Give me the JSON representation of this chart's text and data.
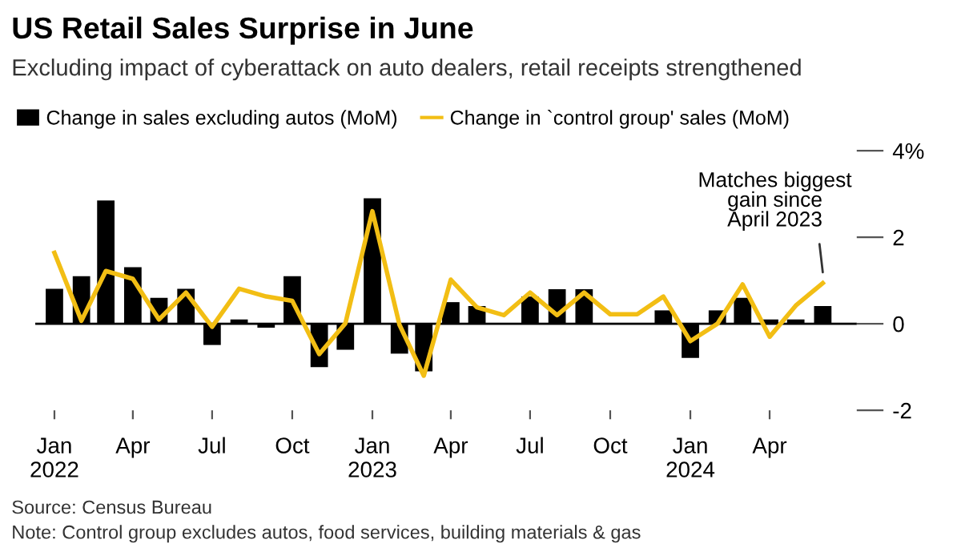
{
  "chart_data": {
    "type": "bar",
    "title": "US Retail Sales Surprise in June",
    "subtitle": "Excluding impact of cyberattack on auto dealers, retail receipts strengthened",
    "x": [
      "2022-01",
      "2022-02",
      "2022-03",
      "2022-04",
      "2022-05",
      "2022-06",
      "2022-07",
      "2022-08",
      "2022-09",
      "2022-10",
      "2022-11",
      "2022-12",
      "2023-01",
      "2023-02",
      "2023-03",
      "2023-04",
      "2023-05",
      "2023-06",
      "2023-07",
      "2023-08",
      "2023-09",
      "2023-10",
      "2023-11",
      "2023-12",
      "2024-01",
      "2024-02",
      "2024-03",
      "2024-04",
      "2024-05",
      "2024-06"
    ],
    "series": [
      {
        "name": "Change in sales excluding autos (MoM)",
        "color": "#000000",
        "values": [
          0.81,
          1.1,
          2.85,
          1.31,
          0.6,
          0.81,
          -0.49,
          0.1,
          -0.09,
          1.1,
          -1.0,
          -0.6,
          2.9,
          -0.69,
          -1.1,
          0.5,
          0.41,
          0,
          0.63,
          0.8,
          0.8,
          0,
          0,
          0.31,
          -0.79,
          0.31,
          0.6,
          0.1,
          0.1,
          0.41
        ]
      },
      {
        "name": "Change in `control group' sales (MoM)",
        "type": "line",
        "color": "#f2be14",
        "values": [
          1.64,
          0.07,
          1.22,
          1.04,
          0.1,
          0.72,
          -0.07,
          0.81,
          0.63,
          0.53,
          -0.7,
          0.01,
          2.6,
          -0.02,
          -1.2,
          1.02,
          0.38,
          0.2,
          0.72,
          0.2,
          0.72,
          0.22,
          0.22,
          0.63,
          -0.4,
          0,
          0.91,
          -0.3,
          0.42,
          0.94
        ]
      }
    ],
    "xlim": [
      "2021-12-10",
      "2024-07-10"
    ],
    "xticks": [
      {
        "value": "2022-01",
        "label": "Jan\n2022"
      },
      {
        "value": "2022-04",
        "label": "Apr"
      },
      {
        "value": "2022-07",
        "label": "Jul"
      },
      {
        "value": "2022-10",
        "label": "Oct"
      },
      {
        "value": "2023-01",
        "label": "Jan\n2023"
      },
      {
        "value": "2023-04",
        "label": "Apr"
      },
      {
        "value": "2023-07",
        "label": "Jul"
      },
      {
        "value": "2023-10",
        "label": "Oct"
      },
      {
        "value": "2024-01",
        "label": "Jan\n2024"
      },
      {
        "value": "2024-04",
        "label": "Apr"
      }
    ],
    "ylim": [
      -2,
      4
    ],
    "yticks": [
      {
        "value": 4,
        "label": "4%"
      },
      2,
      0,
      -2
    ],
    "ref_lines": [
      {
        "axis": "y",
        "value": 0,
        "color": "#000000"
      }
    ],
    "grid": false,
    "legend": "top left",
    "annotations": [
      {
        "text": "Matches biggest\ngain since\nApril 2023",
        "x": "2024-06",
        "y": 0.94
      },
      "Source: Census Bureau",
      "Note: Control group excludes autos, food services, building materials & gas"
    ]
  }
}
